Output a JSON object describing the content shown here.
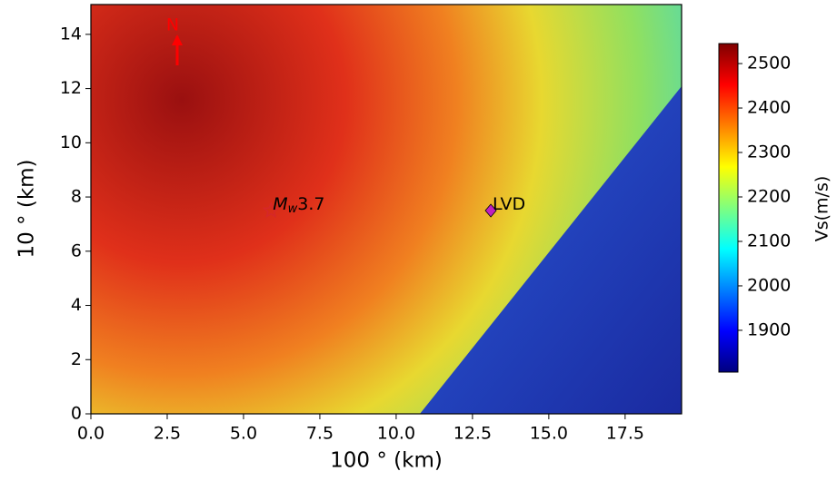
{
  "chart_data": {
    "type": "map",
    "xlabel": "100 ° (km)",
    "ylabel": "10 ° (km)",
    "xlim": [
      0,
      19.35
    ],
    "ylim": [
      0,
      15.1
    ],
    "xticks": [
      {
        "value": 0,
        "label": "0.0"
      },
      {
        "value": 2.5,
        "label": "2.5"
      },
      {
        "value": 5,
        "label": "5.0"
      },
      {
        "value": 7.5,
        "label": "7.5"
      },
      {
        "value": 10,
        "label": "10.0"
      },
      {
        "value": 12.5,
        "label": "12.5"
      },
      {
        "value": 15,
        "label": "15.0"
      },
      {
        "value": 17.5,
        "label": "17.5"
      }
    ],
    "yticks": [
      0,
      2,
      4,
      6,
      8,
      10,
      12,
      14
    ],
    "colorbar": {
      "label": "Vs(m/s)",
      "clim": [
        1806,
        2545
      ],
      "ticks": [
        1900,
        2000,
        2100,
        2200,
        2300,
        2400,
        2500
      ]
    },
    "north_label": "N",
    "markers": [
      {
        "shape": "star",
        "x": 5.9,
        "y": 7.5,
        "color": "#d62728",
        "label_base": "M",
        "label_sub": "w",
        "label_rest": "3.7"
      },
      {
        "shape": "diamond",
        "x": 13.1,
        "y": 7.5,
        "color": "#c020c0",
        "label_rest": "LVD"
      }
    ]
  }
}
